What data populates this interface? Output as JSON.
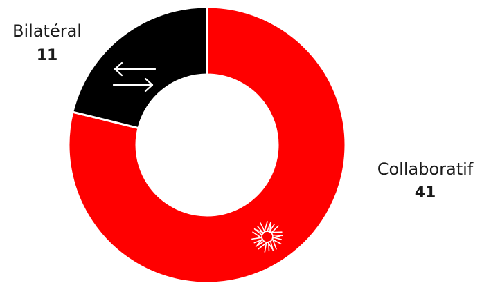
{
  "chart_data": {
    "type": "pie",
    "variant": "donut",
    "categories": [
      "Collaboratif",
      "Bilatéral"
    ],
    "values": [
      41,
      11
    ],
    "colors": [
      "#ff0000",
      "#000000"
    ],
    "icons": [
      "hands-circle-icon",
      "arrows-exchange-icon"
    ]
  }
}
